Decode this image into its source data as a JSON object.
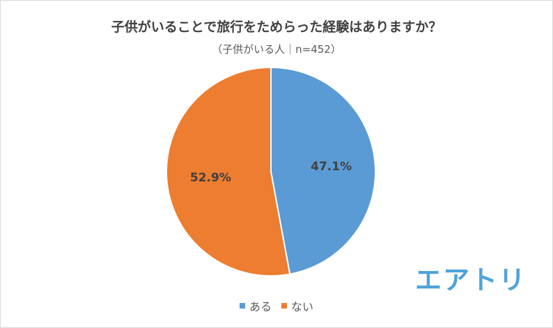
{
  "chart_data": {
    "type": "pie",
    "title": "子供がいることで旅行をためらった経験はありますか？",
    "subtitle": "（子供がいる人｜n=452）",
    "categories": [
      "ある",
      "ない"
    ],
    "values": [
      47.1,
      52.9
    ],
    "labels": [
      "47.1%",
      "52.9%"
    ],
    "colors": [
      "#5B9BD5",
      "#ED7D31"
    ],
    "legend_position": "bottom"
  },
  "logo": {
    "text": "エアトリ",
    "color": "#4FA3D9"
  }
}
